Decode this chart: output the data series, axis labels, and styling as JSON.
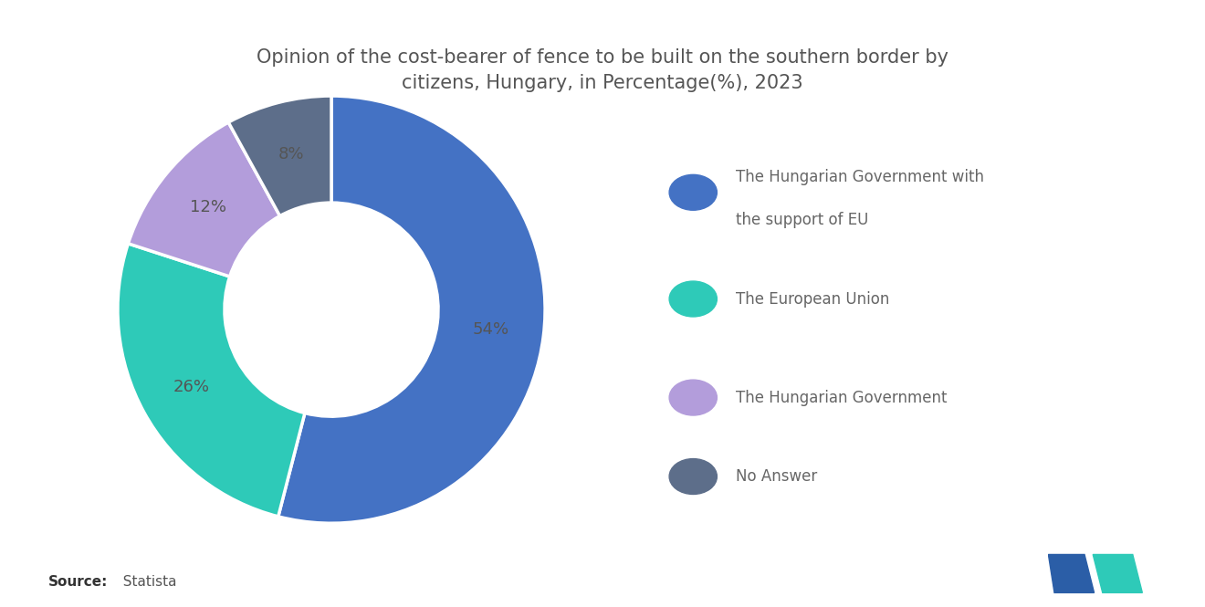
{
  "title": "Opinion of the cost-bearer of fence to be built on the southern border by\ncitizens, Hungary, in Percentage(%), 2023",
  "values": [
    54,
    26,
    12,
    8
  ],
  "labels": [
    "54%",
    "26%",
    "12%",
    "8%"
  ],
  "colors": [
    "#4472C4",
    "#2ECAB8",
    "#B39DDB",
    "#5D6E8A"
  ],
  "legend_labels": [
    "The Hungarian Government with\nthe support of EU",
    "The European Union",
    "The Hungarian Government",
    "No Answer"
  ],
  "source_bold": "Source:",
  "source_normal": "  Statista",
  "background_color": "#ffffff",
  "title_fontsize": 15,
  "label_fontsize": 13,
  "legend_fontsize": 12,
  "startangle": 90
}
